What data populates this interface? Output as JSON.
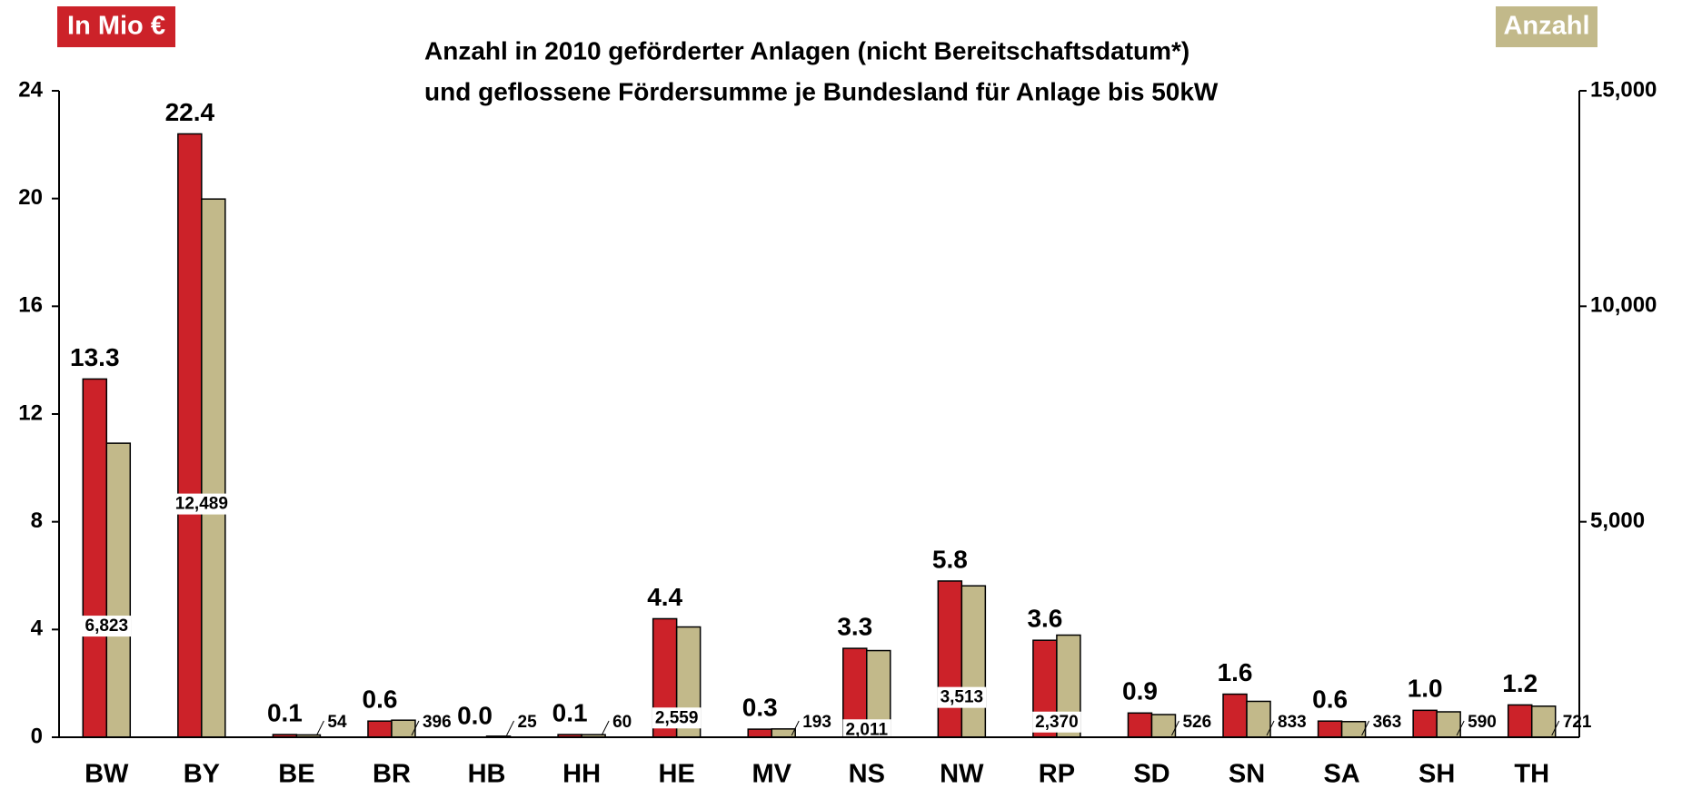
{
  "chart_data": {
    "type": "bar",
    "title": "Anzahl in 2010 geförderter Anlagen (nicht Bereitschaftsdatum*)",
    "subtitle": "und geflossene Fördersumme je Bundesland für Anlage bis 50kW",
    "y_label": "In Mio €",
    "y2_label": "Anzahl",
    "categories": [
      "BW",
      "BY",
      "BE",
      "BR",
      "HB",
      "HH",
      "HE",
      "MV",
      "NS",
      "NW",
      "RP",
      "SD",
      "SN",
      "SA",
      "SH",
      "TH"
    ],
    "series": [
      {
        "name": "In Mio €",
        "color": "#cc2229",
        "axis": "y",
        "values": [
          13.3,
          22.4,
          0.1,
          0.6,
          0.0,
          0.1,
          4.4,
          0.3,
          3.3,
          5.8,
          3.6,
          0.9,
          1.6,
          0.6,
          1.0,
          1.2
        ],
        "value_labels": [
          "13.3",
          "22.4",
          "0.1",
          "0.6",
          "0.0",
          "0.1",
          "4.4",
          "0.3",
          "3.3",
          "5.8",
          "3.6",
          "0.9",
          "1.6",
          "0.6",
          "1.0",
          "1.2"
        ]
      },
      {
        "name": "Anzahl",
        "color": "#c2b98a",
        "axis": "y2",
        "values": [
          6823,
          12489,
          54,
          396,
          25,
          60,
          2559,
          193,
          2011,
          3513,
          2370,
          526,
          833,
          363,
          590,
          721
        ],
        "value_labels": [
          "6,823",
          "12,489",
          "54",
          "396",
          "25",
          "60",
          "2,559",
          "193",
          "2,011",
          "3,513",
          "2,370",
          "526",
          "833",
          "363",
          "590",
          "721"
        ]
      }
    ],
    "ylim": [
      0,
      24
    ],
    "yticks": [
      0,
      4,
      8,
      12,
      16,
      20,
      24
    ],
    "y2lim": [
      0,
      15000
    ],
    "y2ticks": [
      {
        "value": 5000,
        "label": "5,000"
      },
      {
        "value": 10000,
        "label": "10,000"
      },
      {
        "value": 15000,
        "label": "15,000"
      }
    ]
  }
}
